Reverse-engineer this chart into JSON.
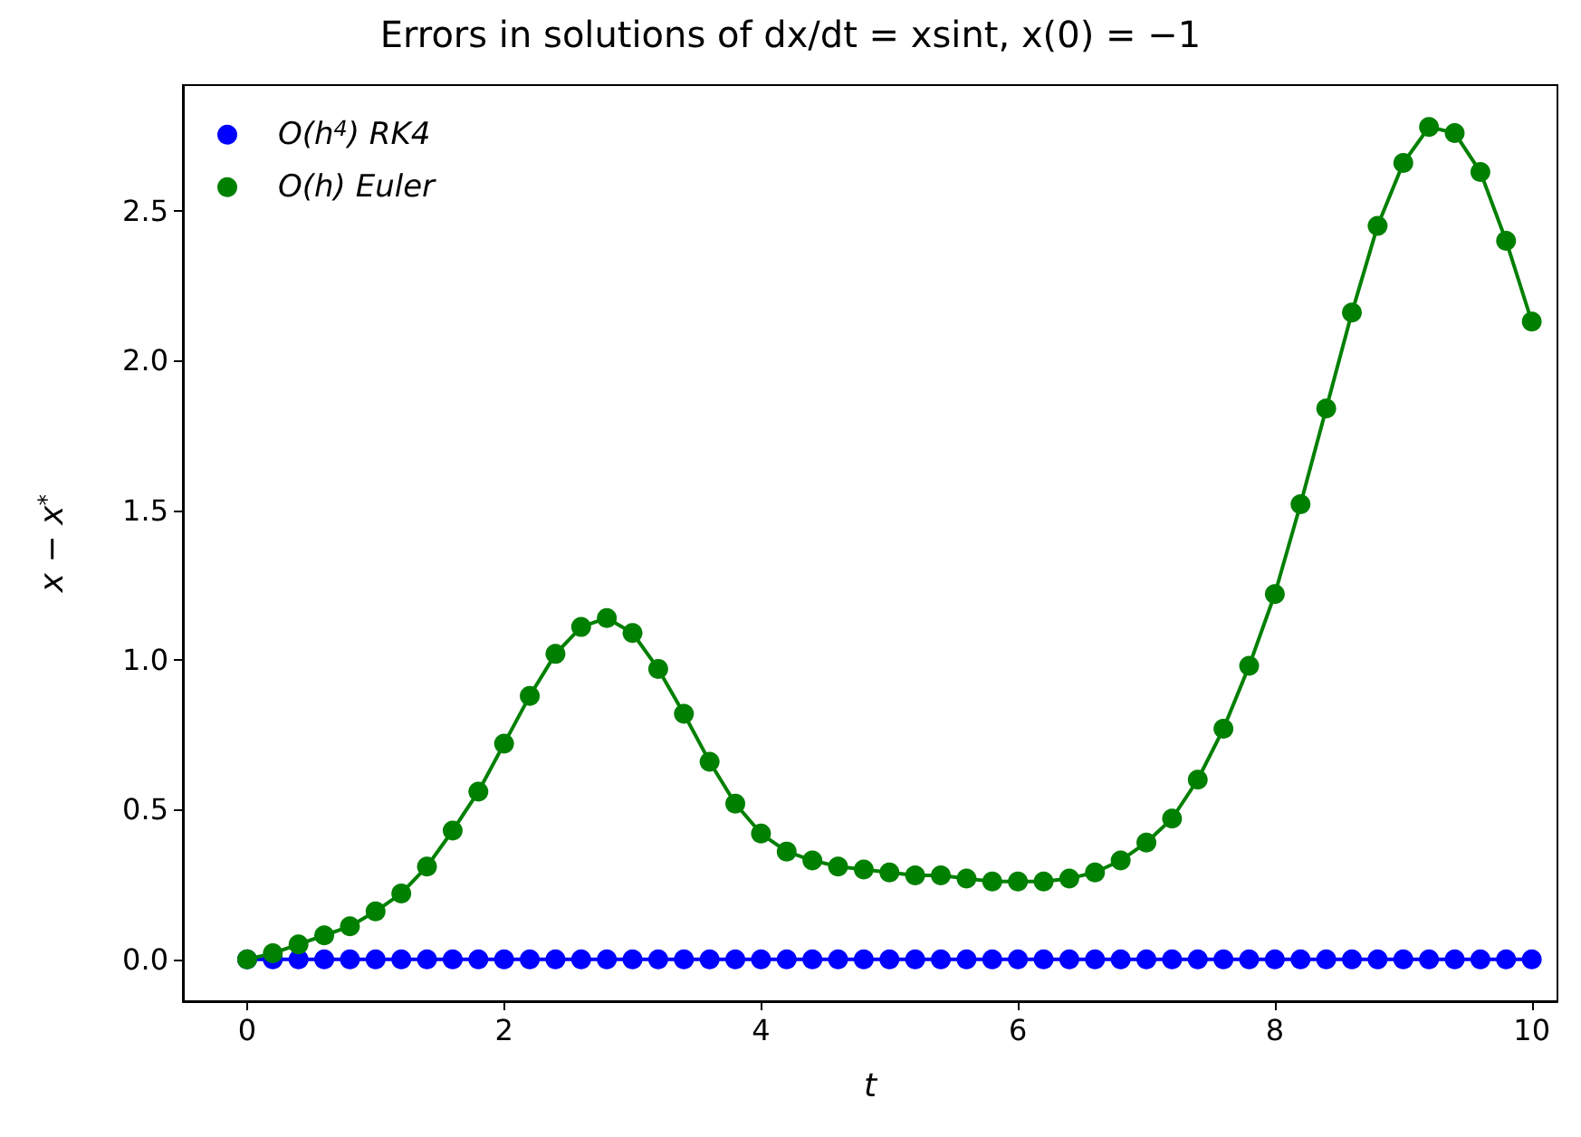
{
  "chart_data": {
    "type": "line",
    "title": "Errors in solutions of dx/dt = xsint, x(0) = −1",
    "xlabel": "t",
    "ylabel": "x − x$^{*}$",
    "x": [
      0,
      0.2,
      0.4,
      0.6,
      0.8,
      1.0,
      1.2,
      1.4,
      1.6,
      1.8,
      2.0,
      2.2,
      2.4,
      2.6,
      2.8,
      3.0,
      3.2,
      3.4,
      3.6,
      3.8,
      4.0,
      4.2,
      4.4,
      4.6,
      4.8,
      5.0,
      5.2,
      5.4,
      5.6,
      5.8,
      6.0,
      6.2,
      6.4,
      6.6,
      6.8,
      7.0,
      7.2,
      7.4,
      7.6,
      7.8,
      8.0,
      8.2,
      8.4,
      8.6,
      8.8,
      9.0,
      9.2,
      9.4,
      9.6,
      9.8,
      10.0
    ],
    "series": [
      {
        "name": "O(h$^{4}$) RK4",
        "color": "#0000ff",
        "values": [
          0,
          0,
          0,
          0,
          0,
          0,
          0,
          0,
          0,
          0,
          0,
          0,
          0,
          0,
          0,
          0,
          0,
          0,
          0,
          0,
          0,
          0,
          0,
          0,
          0,
          0,
          0,
          0,
          0,
          0,
          0,
          0,
          0,
          0,
          0,
          0,
          0,
          0,
          0,
          0,
          0,
          0,
          0,
          0,
          0,
          0,
          0,
          0,
          0,
          0,
          0
        ]
      },
      {
        "name": "O(h) Euler",
        "color": "#008000",
        "values": [
          0,
          0.02,
          0.05,
          0.08,
          0.11,
          0.16,
          0.22,
          0.31,
          0.43,
          0.56,
          0.72,
          0.88,
          1.02,
          1.11,
          1.14,
          1.09,
          0.97,
          0.82,
          0.66,
          0.52,
          0.42,
          0.36,
          0.33,
          0.31,
          0.3,
          0.29,
          0.28,
          0.28,
          0.27,
          0.26,
          0.26,
          0.26,
          0.27,
          0.29,
          0.33,
          0.39,
          0.47,
          0.6,
          0.77,
          0.98,
          1.22,
          1.52,
          1.84,
          2.16,
          2.45,
          2.66,
          2.78,
          2.76,
          2.63,
          2.4,
          2.13
        ]
      }
    ],
    "xlim": [
      -0.5,
      10.2
    ],
    "xticks": [
      0,
      2,
      4,
      6,
      8,
      10
    ],
    "ylim": [
      -0.14,
      2.92
    ],
    "yticks": [
      {
        "value": 0,
        "label": "0.0"
      },
      0.5,
      {
        "value": 1,
        "label": "1.0"
      },
      1.5,
      {
        "value": 2,
        "label": "2.0"
      },
      2.5
    ],
    "grid": false,
    "legend": "top left",
    "marker": "circle",
    "line_style": "solid"
  }
}
